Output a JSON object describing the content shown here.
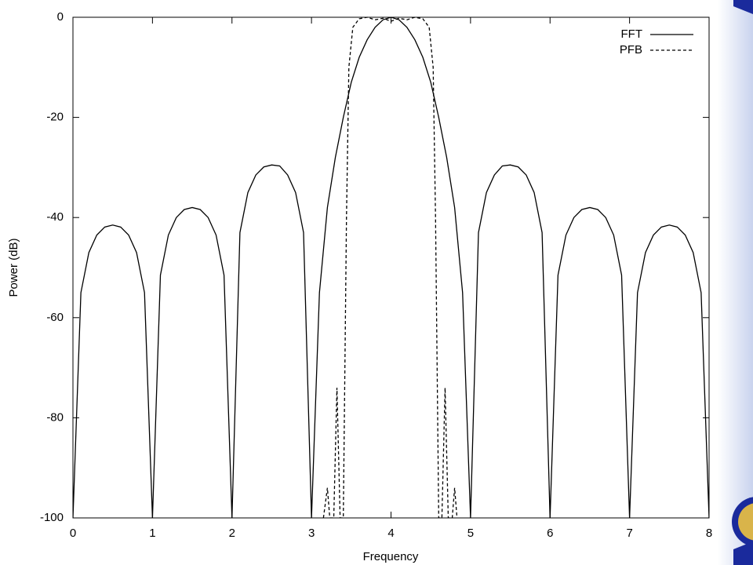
{
  "chart_data": {
    "type": "line",
    "xlabel": "Frequency",
    "ylabel": "Power (dB)",
    "xlim": [
      0,
      8
    ],
    "ylim": [
      -100,
      0
    ],
    "xticks": [
      0,
      1,
      2,
      3,
      4,
      5,
      6,
      7,
      8
    ],
    "yticks": [
      0,
      -20,
      -40,
      -60,
      -80,
      -100
    ],
    "legend": "top right",
    "grid": false,
    "series": [
      {
        "name": "FFT",
        "color": "#000000",
        "style": "solid",
        "x": [
          0,
          0.1,
          0.2,
          0.3,
          0.4,
          0.5,
          0.6,
          0.7,
          0.8,
          0.9,
          1,
          1.1,
          1.2,
          1.3,
          1.4,
          1.5,
          1.6,
          1.7,
          1.8,
          1.9,
          2,
          2.1,
          2.2,
          2.3,
          2.4,
          2.5,
          2.6,
          2.7,
          2.8,
          2.9,
          3,
          3.1,
          3.2,
          3.3,
          3.4,
          3.5,
          3.6,
          3.7,
          3.8,
          3.9,
          4,
          4.1,
          4.2,
          4.3,
          4.4,
          4.5,
          4.6,
          4.7,
          4.8,
          4.9,
          5,
          5.1,
          5.2,
          5.3,
          5.4,
          5.5,
          5.6,
          5.7,
          5.8,
          5.9,
          6,
          6.1,
          6.2,
          6.3,
          6.4,
          6.5,
          6.6,
          6.7,
          6.8,
          6.9,
          7,
          7.1,
          7.2,
          7.3,
          7.4,
          7.5,
          7.6,
          7.7,
          7.8,
          7.9,
          8
        ],
        "values": [
          -100,
          -55,
          -47,
          -43.5,
          -41.9,
          -41.5,
          -41.9,
          -43.5,
          -47,
          -55,
          -100,
          -51.5,
          -43.5,
          -40,
          -38.4,
          -38,
          -38.4,
          -40,
          -43.5,
          -51.5,
          -100,
          -43,
          -35,
          -31.5,
          -29.9,
          -29.5,
          -29.7,
          -31.5,
          -35,
          -43,
          -100,
          -55,
          -38,
          -28,
          -20,
          -13,
          -8,
          -4.5,
          -2,
          -0.5,
          0,
          -0.5,
          -2,
          -4.5,
          -8,
          -13,
          -20,
          -28,
          -38,
          -55,
          -100,
          -43,
          -35,
          -31.5,
          -29.7,
          -29.5,
          -29.9,
          -31.5,
          -35,
          -43,
          -100,
          -51.5,
          -43.5,
          -40,
          -38.4,
          -38,
          -38.4,
          -40,
          -43.5,
          -51.5,
          -100,
          -55,
          -47,
          -43.5,
          -41.9,
          -41.5,
          -41.9,
          -43.5,
          -47,
          -55,
          -100
        ]
      },
      {
        "name": "PFB",
        "color": "#000000",
        "style": "dashed",
        "x": [
          3.15,
          3.2,
          3.23,
          3.28,
          3.32,
          3.36,
          3.4,
          3.44,
          3.47,
          3.52,
          3.6,
          3.7,
          3.8,
          3.9,
          4.0,
          4.1,
          4.2,
          4.3,
          4.4,
          4.48,
          4.53,
          4.56,
          4.6,
          4.64,
          4.68,
          4.72,
          4.77,
          4.8,
          4.83
        ],
        "values": [
          -100,
          -94,
          -100,
          -100,
          -74,
          -100,
          -100,
          -40,
          -10,
          -2,
          -0.3,
          0,
          -0.5,
          -0.2,
          -0.8,
          -0.2,
          -0.5,
          0,
          -0.3,
          -2,
          -10,
          -40,
          -100,
          -100,
          -74,
          -100,
          -100,
          -94,
          -100
        ]
      }
    ]
  }
}
